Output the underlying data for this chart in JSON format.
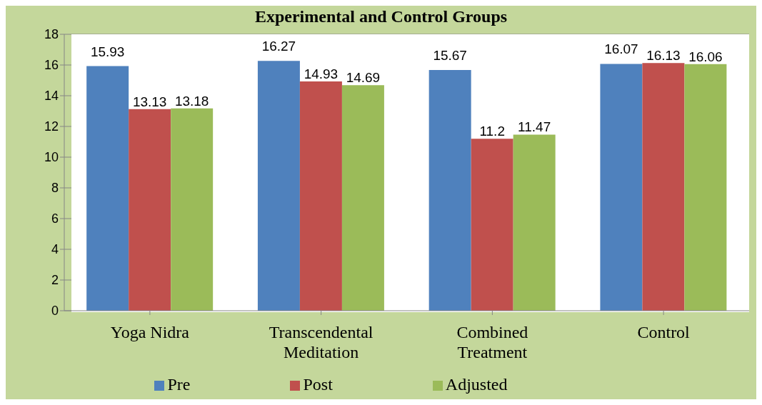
{
  "chart_data": {
    "type": "bar",
    "title": "Experimental and Control Groups",
    "categories": [
      "Yoga Nidra",
      "Transcendental Meditation",
      "Combined Treatment",
      "Control"
    ],
    "series": [
      {
        "name": "Pre",
        "color": "#4f81bd",
        "values": [
          15.93,
          16.27,
          15.67,
          16.07
        ]
      },
      {
        "name": "Post",
        "color": "#c0504d",
        "values": [
          13.13,
          14.93,
          11.2,
          16.13
        ]
      },
      {
        "name": "Adjusted",
        "color": "#9bbb59",
        "values": [
          13.18,
          14.69,
          11.47,
          16.06
        ]
      }
    ],
    "ylim": [
      0,
      18
    ],
    "yticks": [
      0,
      2,
      4,
      6,
      8,
      10,
      12,
      14,
      16,
      18
    ],
    "grid": "y",
    "legend": "bottom",
    "data_labels": true
  }
}
